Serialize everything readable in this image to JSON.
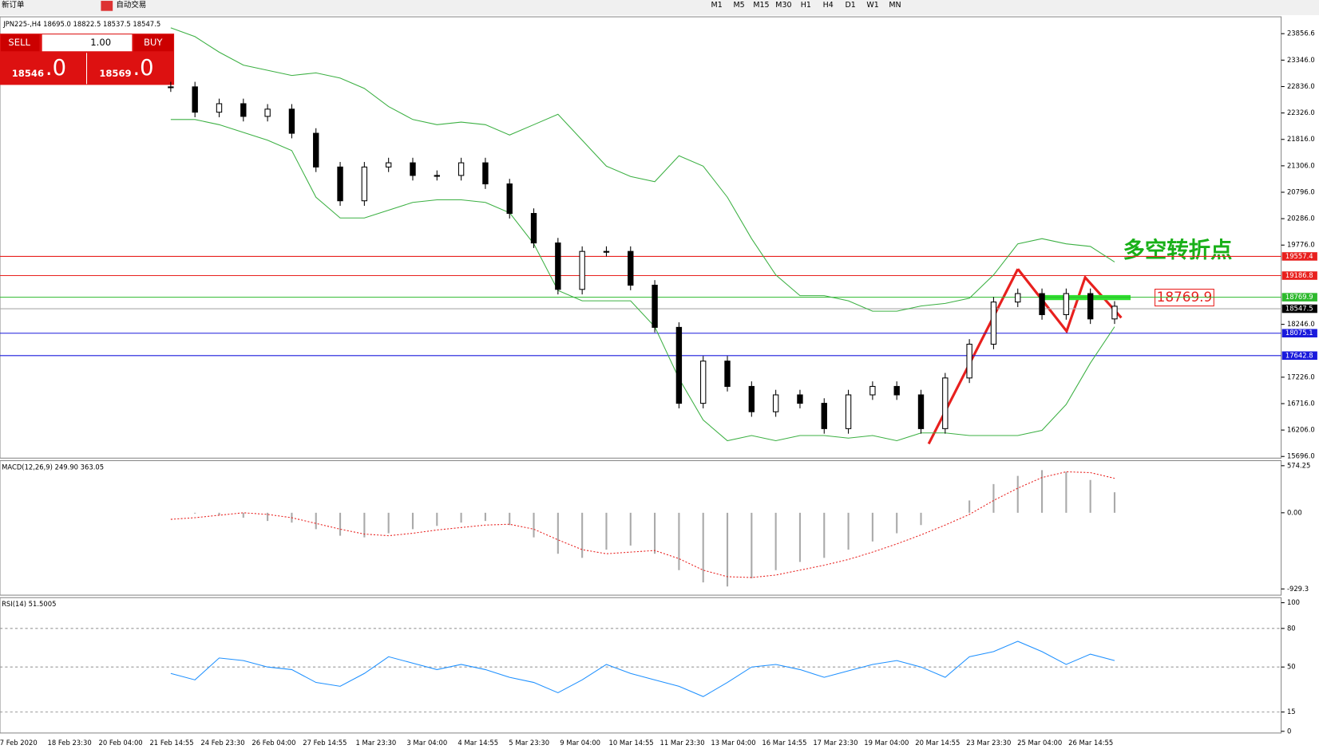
{
  "toolbar": {
    "items": [
      "新订单",
      "自动交易"
    ],
    "timeframes": [
      "M1",
      "M5",
      "M15",
      "M30",
      "H1",
      "H4",
      "D1",
      "W1",
      "MN"
    ]
  },
  "trade_panel": {
    "sell": "SELL",
    "buy": "BUY",
    "volume": "1.00",
    "sell_big": "18546",
    "sell_small": ".0",
    "buy_big": "18569",
    "buy_small": ".0"
  },
  "chart_data": {
    "type": "candlestick",
    "title": "JPN225-,H4  18695.0 18822.5 18537.5 18547.5",
    "closes": [
      22830,
      22341,
      22505,
      22260,
      22400,
      21934,
      21283,
      20631,
      21283,
      21364,
      21120,
      21120,
      21364,
      20957,
      20387,
      19817,
      18921,
      19654,
      19654,
      19002,
      18188,
      16722,
      17537,
      17048,
      16559,
      16885,
      16722,
      16233,
      16885,
      17048,
      16885,
      16233,
      17211,
      17863,
      18677,
      18840,
      18433,
      18840,
      18351,
      18596
    ],
    "bands_upper": [
      23970,
      23800,
      23500,
      23250,
      23150,
      23050,
      23100,
      23000,
      22800,
      22450,
      22200,
      22100,
      22150,
      22100,
      21900,
      22100,
      22300,
      21800,
      21300,
      21100,
      21000,
      21500,
      21300,
      20700,
      19900,
      19200,
      18800,
      18800,
      18700,
      18500,
      18500,
      18600,
      18650,
      18750,
      19200,
      19800,
      19900,
      19800,
      19750,
      19450
    ],
    "bands_lower": [
      22200,
      22200,
      22100,
      21950,
      21800,
      21600,
      20700,
      20300,
      20300,
      20450,
      20600,
      20650,
      20650,
      20600,
      20400,
      19800,
      18900,
      18700,
      18700,
      18700,
      18200,
      17200,
      16400,
      16000,
      16100,
      16000,
      16100,
      16100,
      16050,
      16100,
      16000,
      16150,
      16150,
      16100,
      16100,
      16100,
      16200,
      16700,
      17500,
      18200
    ],
    "band_color": "#3cb043",
    "ylim": [
      15664,
      24182
    ],
    "yticks": [
      23856.6,
      {
        "value": 23346,
        "label": "23346.0"
      },
      {
        "value": 22836,
        "label": "22836.0"
      },
      {
        "value": 22326,
        "label": "22326.0"
      },
      {
        "value": 21816,
        "label": "21816.0"
      },
      {
        "value": 21306,
        "label": "21306.0"
      },
      {
        "value": 20796,
        "label": "20796.0"
      },
      {
        "value": 20286,
        "label": "20286.0"
      },
      {
        "value": 19776,
        "label": "19776.0"
      },
      {
        "value": 18246,
        "label": "18246.0"
      },
      {
        "value": 17226,
        "label": "17226.0"
      },
      {
        "value": 16716,
        "label": "16716.0"
      },
      {
        "value": 16206,
        "label": "16206.0"
      },
      {
        "value": 15696,
        "label": "15696.0"
      }
    ],
    "levels": [
      {
        "value": 19557.4,
        "color": "#e8201e"
      },
      {
        "value": 19186.8,
        "color": "#e8201e"
      },
      {
        "value": 18769.9,
        "color": "#2db92d"
      },
      {
        "value": 18547.5,
        "color": "#000000"
      },
      {
        "value": 18075.1,
        "color": "#1a1adc"
      },
      {
        "value": 17642.8,
        "color": "#1a1adc"
      }
    ],
    "annotation": "多空转折点",
    "x_labels": [
      "7 Feb 2020",
      "18 Feb 23:30",
      "20 Feb 04:00",
      "21 Feb 14:55",
      "24 Feb 23:30",
      "26 Feb 04:00",
      "27 Feb 14:55",
      "1 Mar 23:30",
      "3 Mar 04:00",
      "4 Mar 14:55",
      "5 Mar 23:30",
      "9 Mar 04:00",
      "10 Mar 14:55",
      "11 Mar 23:30",
      "13 Mar 04:00",
      "16 Mar 14:55",
      "17 Mar 23:30",
      "19 Mar 04:00",
      "20 Mar 14:55",
      "23 Mar 23:30",
      "25 Mar 04:00",
      "26 Mar 14:55"
    ]
  },
  "macd": {
    "title": "MACD(12,26,9) 249.90 363.05",
    "ylim": [
      -1005,
      636
    ],
    "yticks": [
      574.25,
      {
        "value": 0,
        "label": "0.00"
      },
      -929.3
    ],
    "histogram": [
      0,
      -10,
      -30,
      -60,
      -100,
      -120,
      -200,
      -280,
      -300,
      -250,
      -200,
      -160,
      -120,
      -100,
      -150,
      -300,
      -500,
      -550,
      -450,
      -400,
      -500,
      -700,
      -850,
      -900,
      -800,
      -700,
      -600,
      -550,
      -450,
      -350,
      -250,
      -150,
      0,
      150,
      350,
      450,
      520,
      500,
      400,
      250
    ],
    "signal": [
      -80,
      -60,
      -30,
      0,
      -20,
      -60,
      -130,
      -200,
      -260,
      -280,
      -250,
      -210,
      -180,
      -150,
      -140,
      -200,
      -330,
      -450,
      -500,
      -480,
      -460,
      -560,
      -700,
      -780,
      -790,
      -760,
      -700,
      -640,
      -570,
      -480,
      -380,
      -270,
      -150,
      -20,
      150,
      300,
      430,
      500,
      490,
      420
    ],
    "signal_color": "#e8201e"
  },
  "rsi": {
    "title": "RSI(14) 51.5005",
    "ylim": [
      0,
      100
    ],
    "yticks": [
      100,
      80,
      50,
      15,
      0
    ],
    "levels": [
      80,
      50,
      15
    ],
    "values": [
      45,
      40,
      57,
      55,
      50,
      48,
      38,
      35,
      45,
      58,
      53,
      48,
      52,
      48,
      42,
      38,
      30,
      40,
      52,
      45,
      40,
      35,
      27,
      38,
      50,
      52,
      48,
      42,
      47,
      52,
      55,
      50,
      42,
      58,
      62,
      70,
      62,
      52,
      60,
      55
    ],
    "color": "#1e90ff"
  }
}
